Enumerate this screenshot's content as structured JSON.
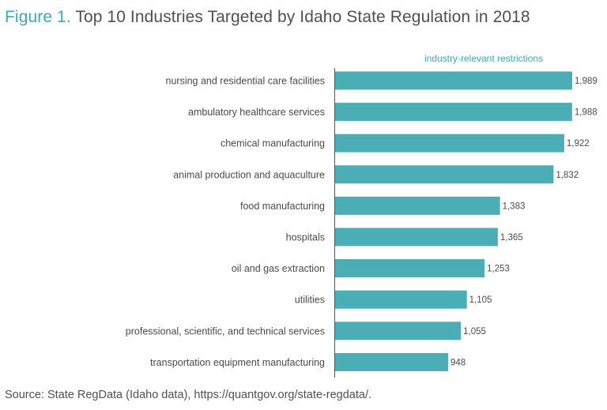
{
  "title": {
    "figure_label": "Figure 1.",
    "text": "Top 10 Industries Targeted by Idaho State Regulation in 2018"
  },
  "source": "Source: State RegData (Idaho data), https://quantgov.org/state-regdata/.",
  "chart_data": {
    "type": "bar",
    "orientation": "horizontal",
    "title": "Top 10 Industries Targeted by Idaho State Regulation in 2018",
    "series_label": "industry-relevant restrictions",
    "categories": [
      "nursing and residential care facilities",
      "ambulatory healthcare services",
      "chemical manufacturing",
      "animal production and aquaculture",
      "food manufacturing",
      "hospitals",
      "oil and gas extraction",
      "utilities",
      "professional, scientific, and technical services",
      "transportation equipment manufacturing"
    ],
    "values": [
      1989,
      1988,
      1922,
      1832,
      1383,
      1365,
      1253,
      1105,
      1055,
      948
    ],
    "value_labels": [
      "1,989",
      "1,988",
      "1,922",
      "1,832",
      "1,383",
      "1,365",
      "1,253",
      "1,105",
      "1,055",
      "948"
    ],
    "xlim": [
      0,
      1989
    ],
    "grid": false,
    "bar_color": "#4badb6",
    "accent_color": "#3fa8b0"
  }
}
